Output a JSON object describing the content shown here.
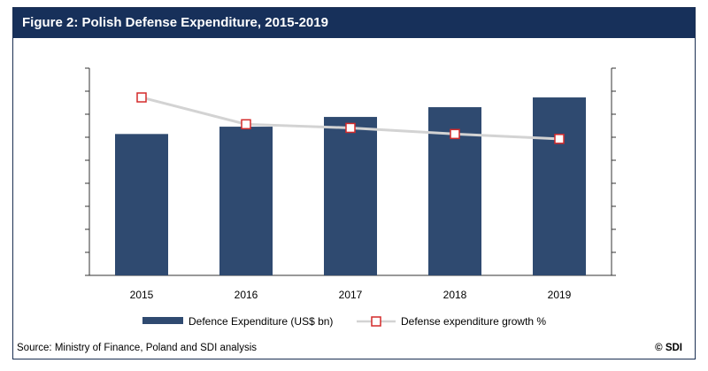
{
  "header": {
    "title": "Figure 2: Polish Defense Expenditure, 2015-2019"
  },
  "footer": {
    "source": "Source: Ministry of Finance, Poland and SDI analysis",
    "copyright": "© SDI"
  },
  "colors": {
    "bar": "#2f4a70",
    "line": "#d3d3d3",
    "marker_edge": "#d42a2a",
    "title_bg": "#17305a"
  },
  "chart_data": {
    "type": "bar",
    "categories": [
      "2015",
      "2016",
      "2017",
      "2018",
      "2019"
    ],
    "series": [
      {
        "name": "Defence Expenditure (US$ bn)",
        "type": "bar",
        "axis": "left",
        "values": [
          5.8,
          6.1,
          6.5,
          6.9,
          7.3
        ]
      },
      {
        "name": "Defense expenditure growth %",
        "type": "line",
        "axis": "right",
        "values": [
          7.3,
          6.2,
          6.05,
          5.8,
          5.6
        ]
      }
    ],
    "ylim_left": [
      0,
      8.5
    ],
    "ylim_right": [
      0,
      8.5
    ],
    "y_tick_count": 9,
    "legend_position": "bottom",
    "grid": false
  }
}
